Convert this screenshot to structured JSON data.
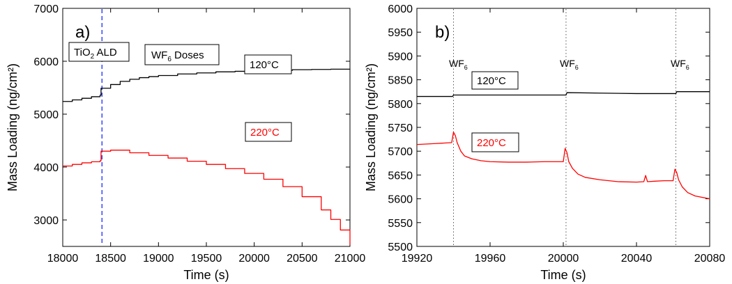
{
  "chart_data": [
    {
      "type": "line",
      "panel_label": "a)",
      "xlabel": "Time (s)",
      "ylabel": "Mass Loading (ng/cm²)",
      "xlim": [
        18000,
        21000
      ],
      "ylim": [
        2500,
        7000
      ],
      "xticks": [
        18000,
        18500,
        19000,
        19500,
        20000,
        20500,
        21000
      ],
      "yticks": [
        3000,
        4000,
        5000,
        6000,
        7000
      ],
      "grid": false,
      "legend": "none",
      "series": [
        {
          "color": "#000000",
          "stepped": true,
          "x": [
            18000,
            18100,
            18200,
            18300,
            18390,
            18400,
            18500,
            18600,
            18700,
            18800,
            18900,
            19000,
            19200,
            19400,
            19600,
            19800,
            20000,
            20200,
            20400,
            20600,
            20800,
            21000
          ],
          "y": [
            5240,
            5270,
            5300,
            5330,
            5360,
            5490,
            5560,
            5620,
            5660,
            5690,
            5710,
            5730,
            5760,
            5780,
            5800,
            5810,
            5820,
            5830,
            5840,
            5845,
            5850,
            5855
          ]
        },
        {
          "color": "#ff0000",
          "stepped": true,
          "x": [
            18000,
            18100,
            18200,
            18300,
            18390,
            18400,
            18500,
            18700,
            18900,
            19100,
            19300,
            19500,
            19700,
            19900,
            20100,
            20300,
            20500,
            20700,
            20800,
            20900,
            21000
          ],
          "y": [
            4020,
            4050,
            4080,
            4100,
            4120,
            4300,
            4320,
            4270,
            4220,
            4170,
            4110,
            4050,
            3970,
            3880,
            3770,
            3630,
            3440,
            3190,
            3010,
            2810,
            2530
          ]
        }
      ],
      "vlines": [
        {
          "x": 18410,
          "color": "#3344ff",
          "style": "dashed"
        }
      ],
      "annotations": {
        "tio2": {
          "main": "TiO",
          "sub": "2",
          "rest": " ALD"
        },
        "wf6_doses": {
          "main": "WF",
          "sub": "6",
          "rest": " Doses"
        },
        "label_120": {
          "text": "120°C",
          "color": "#000000"
        },
        "label_220": {
          "text": "220°C",
          "color": "#ff0000"
        }
      }
    },
    {
      "type": "line",
      "panel_label": "b)",
      "xlabel": "Time (s)",
      "ylabel": "Mass Loading (ng/cm²)",
      "xlim": [
        19920,
        20080
      ],
      "ylim": [
        5500,
        6000
      ],
      "xticks": [
        19920,
        19960,
        20000,
        20040,
        20080
      ],
      "yticks": [
        5500,
        5550,
        5600,
        5650,
        5700,
        5750,
        5800,
        5850,
        5900,
        5950,
        6000
      ],
      "grid": false,
      "legend": "none",
      "series": [
        {
          "color": "#000000",
          "stepped": false,
          "x": [
            19920,
            19939.5,
            19940,
            19960,
            19980,
            20000,
            20001.5,
            20002,
            20020,
            20040,
            20061.5,
            20062,
            20080
          ],
          "y": [
            5815,
            5815,
            5818,
            5818,
            5818,
            5818,
            5818,
            5823,
            5822,
            5821,
            5821,
            5825,
            5825
          ]
        },
        {
          "color": "#ff0000",
          "stepped": false,
          "x": [
            19920,
            19930,
            19939,
            19940,
            19941,
            19942,
            19944,
            19946,
            19950,
            19955,
            19960,
            19970,
            19980,
            19990,
            20000,
            20001,
            20002,
            20003,
            20005,
            20008,
            20012,
            20020,
            20030,
            20040,
            20044,
            20045,
            20046,
            20050,
            20055,
            20060,
            20061,
            20062,
            20063,
            20065,
            20068,
            20072,
            20080
          ],
          "y": [
            5714,
            5716,
            5718,
            5740,
            5733,
            5718,
            5700,
            5690,
            5684,
            5680,
            5678,
            5677,
            5677,
            5678,
            5678,
            5706,
            5697,
            5678,
            5664,
            5652,
            5645,
            5640,
            5636,
            5635,
            5636,
            5649,
            5636,
            5637,
            5638,
            5638,
            5662,
            5655,
            5640,
            5625,
            5613,
            5606,
            5600
          ]
        }
      ],
      "vlines": [
        {
          "x": 19940,
          "color": "#555555",
          "style": "dotted"
        },
        {
          "x": 20001.5,
          "color": "#555555",
          "style": "dotted"
        },
        {
          "x": 20061.5,
          "color": "#555555",
          "style": "dotted"
        }
      ],
      "annotations": {
        "wf6_markers": [
          {
            "main": "WF",
            "sub": "6"
          },
          {
            "main": "WF",
            "sub": "6"
          },
          {
            "main": "WF",
            "sub": "6"
          }
        ],
        "label_120": {
          "text": "120°C",
          "color": "#000000"
        },
        "label_220": {
          "text": "220°C",
          "color": "#ff0000"
        }
      }
    }
  ]
}
